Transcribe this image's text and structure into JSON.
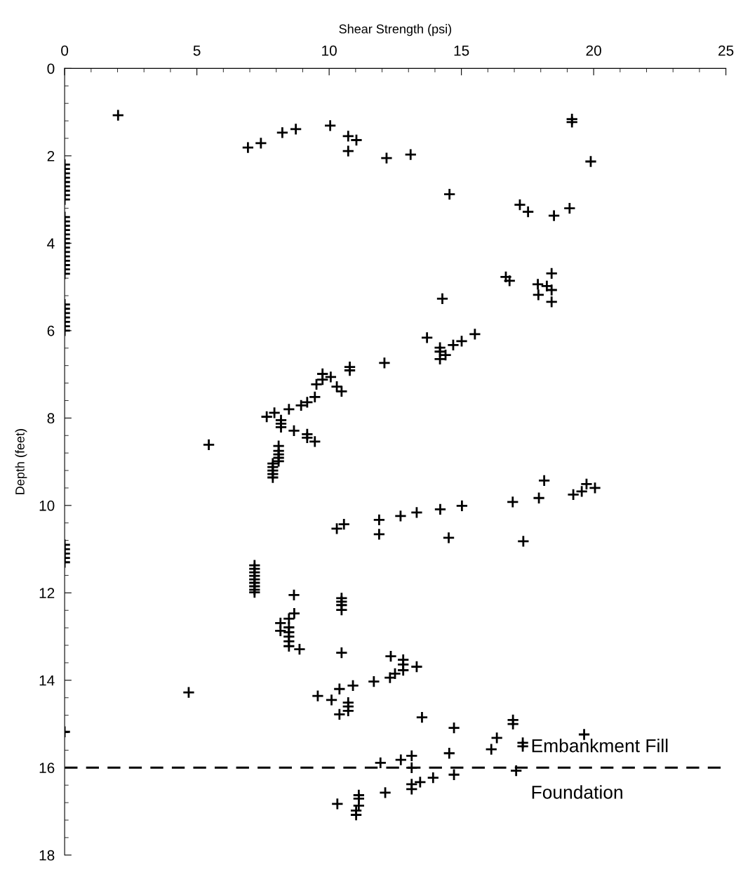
{
  "chart_data": {
    "type": "scatter",
    "xlabel": "Shear Strength (psi)",
    "ylabel": "Depth (feet)",
    "marker": "cross",
    "grid": false,
    "legend": false,
    "series": [
      {
        "color": "#000000",
        "x": [
          2.02,
          6.93,
          7.42,
          8.23,
          8.74,
          10.04,
          10.72,
          11.03,
          10.72,
          19.18,
          19.18,
          12.17,
          13.08,
          19.89,
          0,
          0,
          0,
          0,
          0,
          0,
          0,
          0,
          0,
          0,
          0,
          0,
          0,
          0,
          0,
          0,
          0,
          0,
          0,
          0,
          0,
          0,
          0,
          14.55,
          17.21,
          17.52,
          18.5,
          19.09,
          16.68,
          16.82,
          18.41,
          17.89,
          18.23,
          18.41,
          17.91,
          18.41,
          14.28,
          0,
          0,
          0,
          0,
          0,
          0,
          0,
          13.7,
          15.51,
          15.01,
          14.69,
          14.19,
          14.19,
          14.19,
          14.4,
          12.09,
          10.78,
          10.78,
          9.75,
          9.75,
          10.06,
          9.52,
          10.29,
          10.47,
          9.46,
          9.17,
          8.94,
          8.48,
          7.93,
          7.64,
          8.18,
          8.18,
          8.18,
          8.67,
          9.17,
          9.17,
          9.46,
          5.45,
          8.09,
          8.09,
          8.09,
          8.09,
          8.09,
          7.87,
          7.87,
          7.87,
          7.87,
          7.87,
          18.13,
          19.73,
          20.05,
          19.55,
          19.23,
          17.93,
          16.94,
          15.02,
          14.2,
          13.31,
          12.7,
          11.89,
          10.56,
          10.29,
          11.89,
          14.52,
          17.34,
          0,
          0,
          0,
          0,
          0,
          7.18,
          7.18,
          7.18,
          7.18,
          7.18,
          7.18,
          7.18,
          7.18,
          7.18,
          8.67,
          10.47,
          10.47,
          10.47,
          10.47,
          8.68,
          8.48,
          8.16,
          8.16,
          8.48,
          8.48,
          8.48,
          8.48,
          8.48,
          8.88,
          10.47,
          12.33,
          12.8,
          12.8,
          13.31,
          12.8,
          12.49,
          12.3,
          11.69,
          10.9,
          10.39,
          4.69,
          9.57,
          10.09,
          10.72,
          10.72,
          10.72,
          10.39,
          13.51,
          16.95,
          16.95,
          14.72,
          0,
          19.64,
          16.34,
          17.32,
          17.32,
          16.13,
          14.54,
          13.12,
          12.71,
          11.94,
          13.12,
          17.07,
          14.72,
          13.93,
          13.44,
          13.12,
          13.12,
          12.12,
          11.12,
          11.12,
          10.31,
          11.12,
          11.02,
          11.02
        ],
        "values": [
          1.07,
          1.81,
          1.71,
          1.47,
          1.39,
          1.31,
          1.55,
          1.64,
          1.89,
          1.16,
          1.23,
          2.05,
          1.97,
          2.13,
          2.2,
          2.3,
          2.4,
          2.5,
          2.6,
          2.7,
          2.8,
          2.9,
          3.0,
          3.4,
          3.5,
          3.6,
          3.7,
          3.8,
          3.9,
          4.0,
          4.1,
          4.2,
          4.3,
          4.4,
          4.5,
          4.6,
          4.7,
          2.88,
          3.12,
          3.28,
          3.37,
          3.2,
          4.77,
          4.86,
          4.69,
          4.94,
          4.98,
          5.07,
          5.18,
          5.34,
          5.27,
          5.4,
          5.5,
          5.6,
          5.7,
          5.8,
          5.9,
          6.0,
          6.16,
          6.08,
          6.24,
          6.33,
          6.39,
          6.48,
          6.65,
          6.56,
          6.74,
          6.83,
          6.91,
          6.99,
          7.12,
          7.06,
          7.23,
          7.28,
          7.39,
          7.52,
          7.64,
          7.71,
          7.8,
          7.88,
          7.97,
          8.05,
          8.13,
          8.21,
          8.29,
          8.37,
          8.45,
          8.54,
          8.61,
          8.64,
          8.75,
          8.83,
          8.91,
          8.99,
          9.04,
          9.12,
          9.2,
          9.28,
          9.36,
          9.43,
          9.51,
          9.6,
          9.68,
          9.75,
          9.83,
          9.92,
          10.01,
          10.09,
          10.16,
          10.24,
          10.33,
          10.43,
          10.53,
          10.66,
          10.74,
          10.82,
          10.9,
          11.0,
          11.1,
          11.2,
          11.3,
          11.37,
          11.45,
          11.53,
          11.61,
          11.69,
          11.77,
          11.85,
          11.93,
          11.99,
          12.05,
          12.12,
          12.2,
          12.28,
          12.39,
          12.47,
          12.59,
          12.69,
          12.87,
          12.79,
          12.9,
          13.0,
          13.11,
          13.22,
          13.29,
          13.37,
          13.45,
          13.53,
          13.64,
          13.69,
          13.77,
          13.85,
          13.94,
          14.03,
          14.12,
          14.2,
          14.28,
          14.36,
          14.45,
          14.51,
          14.6,
          14.7,
          14.78,
          14.85,
          14.91,
          15.0,
          15.09,
          15.18,
          15.24,
          15.32,
          15.43,
          15.51,
          15.58,
          15.67,
          15.73,
          15.82,
          15.89,
          16.0,
          16.07,
          16.16,
          16.23,
          16.33,
          16.38,
          16.49,
          16.57,
          16.63,
          16.71,
          16.83,
          16.87,
          16.98,
          17.08
        ]
      }
    ],
    "xlim": [
      0,
      25
    ],
    "xticks": [
      0,
      {
        "value": 1,
        "label": null
      },
      {
        "value": 2,
        "label": null
      },
      {
        "value": 3,
        "label": null
      },
      {
        "value": 4,
        "label": null
      },
      5,
      {
        "value": 6,
        "label": null
      },
      {
        "value": 7,
        "label": null
      },
      {
        "value": 8,
        "label": null
      },
      {
        "value": 9,
        "label": null
      },
      10,
      {
        "value": 11,
        "label": null
      },
      {
        "value": 12,
        "label": null
      },
      {
        "value": 13,
        "label": null
      },
      {
        "value": 14,
        "label": null
      },
      15,
      {
        "value": 16,
        "label": null
      },
      {
        "value": 17,
        "label": null
      },
      {
        "value": 18,
        "label": null
      },
      {
        "value": 19,
        "label": null
      },
      20,
      {
        "value": 21,
        "label": null
      },
      {
        "value": 22,
        "label": null
      },
      {
        "value": 23,
        "label": null
      },
      {
        "value": 24,
        "label": null
      },
      25
    ],
    "ylim": [
      18,
      0
    ],
    "yticks": [
      0,
      {
        "value": 0.4,
        "label": null
      },
      {
        "value": 0.8,
        "label": null
      },
      {
        "value": 1.2,
        "label": null
      },
      {
        "value": 1.6,
        "label": null
      },
      2,
      {
        "value": 2.4,
        "label": null
      },
      {
        "value": 2.8,
        "label": null
      },
      {
        "value": 3.2,
        "label": null
      },
      {
        "value": 3.6,
        "label": null
      },
      4,
      {
        "value": 4.4,
        "label": null
      },
      {
        "value": 4.8,
        "label": null
      },
      {
        "value": 5.2,
        "label": null
      },
      {
        "value": 5.6,
        "label": null
      },
      6,
      {
        "value": 6.4,
        "label": null
      },
      {
        "value": 6.8,
        "label": null
      },
      {
        "value": 7.2,
        "label": null
      },
      {
        "value": 7.6,
        "label": null
      },
      8,
      {
        "value": 8.4,
        "label": null
      },
      {
        "value": 8.8,
        "label": null
      },
      {
        "value": 9.2,
        "label": null
      },
      {
        "value": 9.6,
        "label": null
      },
      10,
      {
        "value": 10.4,
        "label": null
      },
      {
        "value": 10.8,
        "label": null
      },
      {
        "value": 11.2,
        "label": null
      },
      {
        "value": 11.6,
        "label": null
      },
      12,
      {
        "value": 12.4,
        "label": null
      },
      {
        "value": 12.8,
        "label": null
      },
      {
        "value": 13.2,
        "label": null
      },
      {
        "value": 13.6,
        "label": null
      },
      14,
      {
        "value": 14.4,
        "label": null
      },
      {
        "value": 14.8,
        "label": null
      },
      {
        "value": 15.2,
        "label": null
      },
      {
        "value": 15.6,
        "label": null
      },
      16,
      {
        "value": 16.4,
        "label": null
      },
      {
        "value": 16.8,
        "label": null
      },
      {
        "value": 17.2,
        "label": null
      },
      {
        "value": 17.6,
        "label": null
      },
      18
    ],
    "ref_lines": [
      {
        "axis": "y",
        "value": 16,
        "line_style": "dashed",
        "color": "#000000"
      }
    ],
    "annotations": [
      "Embankment Fill",
      "Foundation"
    ]
  }
}
